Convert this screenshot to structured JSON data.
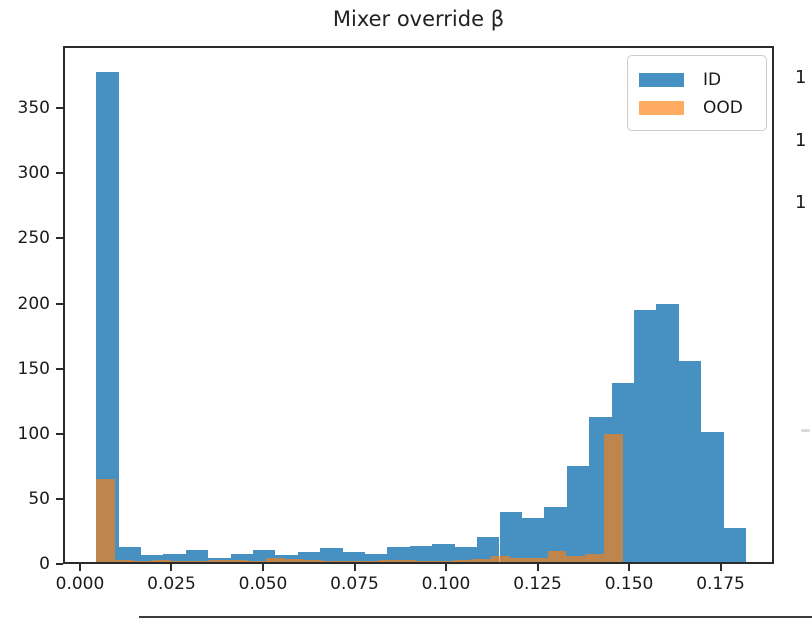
{
  "chart_data": {
    "type": "histogram",
    "title": "Mixer override β",
    "xlabel": "",
    "ylabel": "",
    "xlim": [
      -0.00464,
      0.1896
    ],
    "ylim": [
      0,
      397.8
    ],
    "xticks": [
      0.0,
      0.025,
      0.05,
      0.075,
      0.1,
      0.125,
      0.15,
      0.175
    ],
    "xtick_labels": [
      "0.000",
      "0.025",
      "0.050",
      "0.075",
      "0.100",
      "0.125",
      "0.150",
      "0.175"
    ],
    "yticks": [
      0,
      50,
      100,
      150,
      200,
      250,
      300,
      350
    ],
    "ytick_labels": [
      "0",
      "50",
      "100",
      "150",
      "200",
      "250",
      "300",
      "350"
    ],
    "grid": false,
    "legend_position": "upper right",
    "series": [
      {
        "name": "ID",
        "color": "#1f77b4",
        "alpha": 0.82,
        "bin_start": 0.00445,
        "bin_width": 0.00612,
        "counts": [
          378,
          13,
          7,
          8,
          11,
          5,
          8,
          11,
          7,
          9,
          12,
          9,
          8,
          13,
          14,
          15,
          13,
          21,
          40,
          35,
          44,
          75,
          113,
          139,
          195,
          200,
          156,
          101,
          28
        ]
      },
      {
        "name": "OOD",
        "color": "#ff7f0e",
        "alpha": 0.65,
        "bin_start": 0.00445,
        "bin_width": 0.005137,
        "counts": [
          65,
          3,
          2,
          3,
          2,
          2,
          3,
          3,
          2,
          5,
          4,
          3,
          2,
          2,
          2,
          3,
          3,
          2,
          2,
          3,
          4,
          6,
          5,
          5,
          10,
          6,
          8,
          100
        ]
      }
    ]
  },
  "cropped_right_axis": {
    "labels": [
      "1",
      "1",
      "1"
    ]
  },
  "colors": {
    "spine": "#2b2b2b",
    "id_bar_rendered": "#4890c1",
    "ood_bar_over_white": "#ffac62",
    "ood_over_id_overlap": "#bf854d",
    "separator_line": "#3d3d3d"
  }
}
